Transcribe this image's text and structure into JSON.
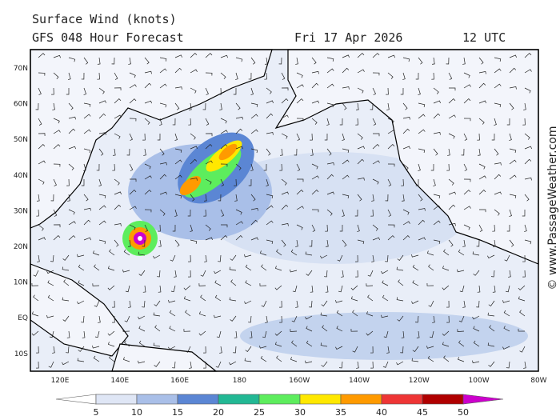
{
  "header": {
    "title": "Surface Wind (knots)",
    "subtitle": "GFS 048 Hour Forecast",
    "date": "Fri 17 Apr 2026",
    "time": "12 UTC"
  },
  "map": {
    "lat_labels": [
      "70N",
      "60N",
      "50N",
      "40N",
      "30N",
      "20N",
      "10N",
      "EQ",
      "10S"
    ],
    "lon_labels": [
      "120E",
      "140E",
      "160E",
      "180",
      "160W",
      "140W",
      "120W",
      "100W",
      "80W"
    ]
  },
  "colorbar": {
    "labels": [
      "5",
      "10",
      "15",
      "20",
      "25",
      "30",
      "35",
      "40",
      "45",
      "50"
    ],
    "colors": [
      "#ffffff",
      "#dfe6f5",
      "#a9bfe8",
      "#5b86d4",
      "#22b894",
      "#5ded5d",
      "#ffe800",
      "#ff9a00",
      "#ee3535",
      "#b00000",
      "#cc00cc"
    ]
  },
  "credit": "© www.PassageWeather.com"
}
